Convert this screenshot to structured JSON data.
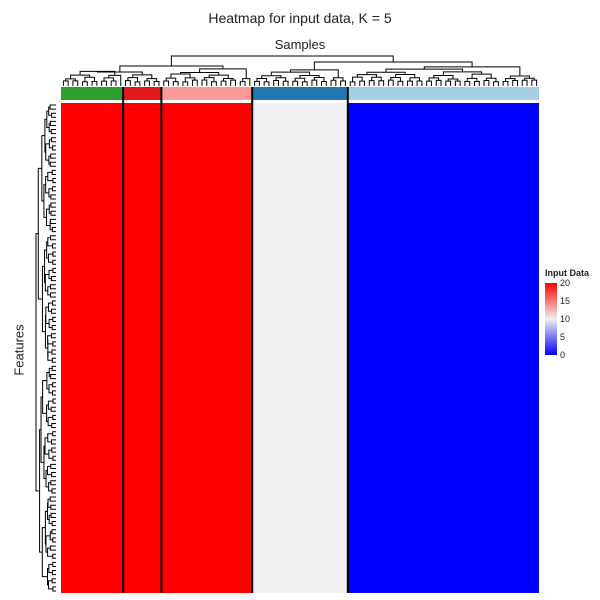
{
  "chart_data": {
    "type": "heatmap",
    "title": "Heatmap for input data, K = 5",
    "xlabel": "Samples",
    "ylabel": "Features",
    "clusters": [
      {
        "id": 1,
        "color": "#2ca02c",
        "samples": 13,
        "value": 20
      },
      {
        "id": 2,
        "color": "#e31a1c",
        "samples": 8,
        "value": 20
      },
      {
        "id": 3,
        "color": "#fb9a99",
        "samples": 19,
        "value": 20
      },
      {
        "id": 4,
        "color": "#1f78b4",
        "samples": 20,
        "value": 10
      },
      {
        "id": 5,
        "color": "#a6cee3",
        "samples": 40,
        "value": 0
      }
    ],
    "legend": {
      "title": "Input Data",
      "ticks": [
        20,
        15,
        10,
        5,
        0
      ],
      "range": [
        0,
        20
      ],
      "colors": {
        "low": "#0000ff",
        "mid": "#f0f0f0",
        "high": "#ff0000"
      },
      "placement": "right"
    }
  }
}
